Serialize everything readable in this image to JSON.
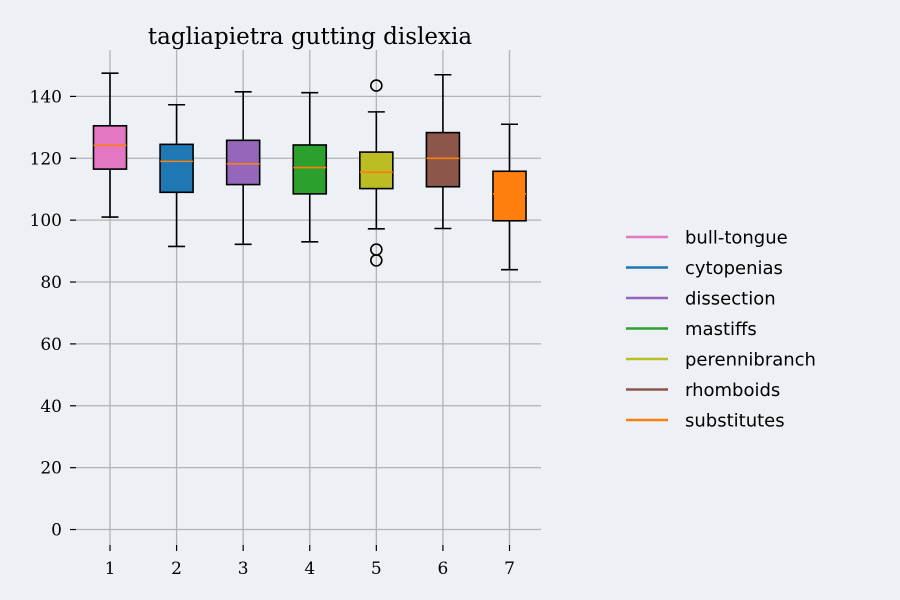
{
  "chart_data": {
    "type": "box",
    "title": "tagliapietra gutting dislexia",
    "xlabel": "",
    "ylabel": "",
    "ylim": [
      -5,
      155
    ],
    "y_ticks": [
      0,
      20,
      40,
      60,
      80,
      100,
      120,
      140
    ],
    "categories": [
      "1",
      "2",
      "3",
      "4",
      "5",
      "6",
      "7"
    ],
    "grid": true,
    "legend_position": "right",
    "median_color": "#ff7f0e",
    "series": [
      {
        "name": "bull-tongue",
        "color": "#e377c2",
        "whisker_low": 101,
        "q1": 116.5,
        "median": 124.2,
        "q3": 130.5,
        "whisker_high": 147.5,
        "outliers": []
      },
      {
        "name": "cytopenias",
        "color": "#1f77b4",
        "whisker_low": 91.5,
        "q1": 109,
        "median": 119,
        "q3": 124.5,
        "whisker_high": 137.3,
        "outliers": []
      },
      {
        "name": "dissection",
        "color": "#9467bd",
        "whisker_low": 92.2,
        "q1": 111.5,
        "median": 118.2,
        "q3": 125.8,
        "whisker_high": 141.5,
        "outliers": []
      },
      {
        "name": "mastiffs",
        "color": "#2ca02c",
        "whisker_low": 93,
        "q1": 108.5,
        "median": 117,
        "q3": 124.3,
        "whisker_high": 141.2,
        "outliers": []
      },
      {
        "name": "perennibranch",
        "color": "#bcbd22",
        "whisker_low": 97.2,
        "q1": 110.2,
        "median": 115.5,
        "q3": 122,
        "whisker_high": 135,
        "outliers": [
          143.5,
          90.5,
          87
        ]
      },
      {
        "name": "rhomboids",
        "color": "#8c564b",
        "whisker_low": 97.3,
        "q1": 110.8,
        "median": 120,
        "q3": 128.3,
        "whisker_high": 147,
        "outliers": []
      },
      {
        "name": "substitutes",
        "color": "#ff7f0e",
        "whisker_low": 84,
        "q1": 99.8,
        "median": 108.5,
        "q3": 115.8,
        "whisker_high": 131,
        "outliers": []
      }
    ]
  }
}
